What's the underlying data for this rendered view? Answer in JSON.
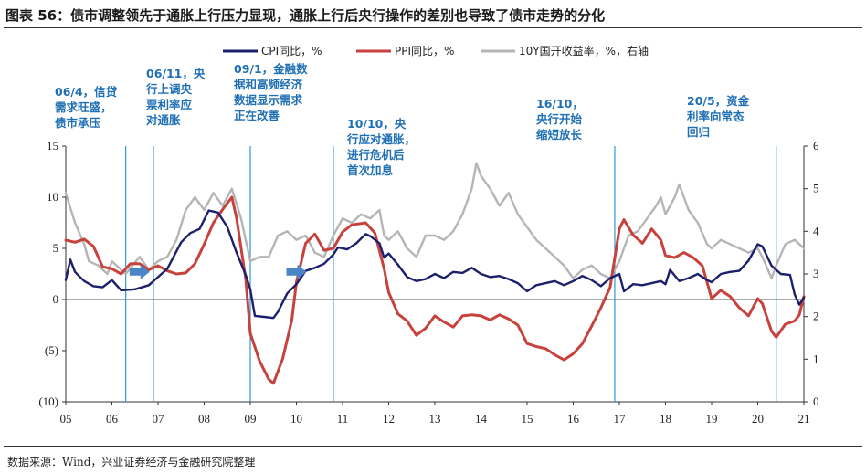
{
  "title": "图表 56：债市调整领先于通胀上行压力显现，通胀上行后央行操作的差别也导致了债市走势的分化",
  "source": "数据来源：Wind，兴业证券经济与金融研究院整理",
  "colors": {
    "cpi": "#1c1f6b",
    "ppi": "#c8423d",
    "yield": "#b5b5b5",
    "event": "#2b9ad6",
    "arrow": "#4a86c5",
    "annotation": "#1f6fb5"
  },
  "chart_data": {
    "type": "line",
    "title": "",
    "xlabel": "",
    "ylabel": "",
    "x_range": [
      2005.0,
      2021.0
    ],
    "xticks": [
      {
        "v": 2005.0,
        "label": "05"
      },
      {
        "v": 2006.0,
        "label": "06"
      },
      {
        "v": 2007.0,
        "label": "07"
      },
      {
        "v": 2008.0,
        "label": "08"
      },
      {
        "v": 2009.0,
        "label": "09"
      },
      {
        "v": 2010.0,
        "label": "10"
      },
      {
        "v": 2011.0,
        "label": "11"
      },
      {
        "v": 2012.0,
        "label": "12"
      },
      {
        "v": 2013.0,
        "label": "13"
      },
      {
        "v": 2014.0,
        "label": "14"
      },
      {
        "v": 2015.0,
        "label": "15"
      },
      {
        "v": 2016.0,
        "label": "16"
      },
      {
        "v": 2017.0,
        "label": "17"
      },
      {
        "v": 2018.0,
        "label": "18"
      },
      {
        "v": 2019.0,
        "label": "19"
      },
      {
        "v": 2020.0,
        "label": "20"
      },
      {
        "v": 2021.0,
        "label": "21"
      }
    ],
    "ylim_left": [
      -10,
      15
    ],
    "yticks_left": [
      {
        "v": 15,
        "label": "15"
      },
      {
        "v": 10,
        "label": "10"
      },
      {
        "v": 5,
        "label": "5"
      },
      {
        "v": 0,
        "label": "0"
      },
      {
        "v": -5,
        "label": "(5)"
      },
      {
        "v": -10,
        "label": "(10)"
      }
    ],
    "ylim_right": [
      0,
      6
    ],
    "yticks_right": [
      {
        "v": 6,
        "label": "6"
      },
      {
        "v": 5,
        "label": "5"
      },
      {
        "v": 4,
        "label": "4"
      },
      {
        "v": 3,
        "label": "3"
      },
      {
        "v": 2,
        "label": "2"
      },
      {
        "v": 1,
        "label": "1"
      },
      {
        "v": 0,
        "label": "0"
      }
    ],
    "series": [
      {
        "name": "CPI同比，%",
        "key": "cpi",
        "axis": "left",
        "points": [
          [
            2005.0,
            1.9
          ],
          [
            2005.1,
            3.9
          ],
          [
            2005.2,
            2.7
          ],
          [
            2005.4,
            1.8
          ],
          [
            2005.6,
            1.3
          ],
          [
            2005.8,
            1.2
          ],
          [
            2006.0,
            1.9
          ],
          [
            2006.2,
            0.9
          ],
          [
            2006.5,
            1.0
          ],
          [
            2006.8,
            1.4
          ],
          [
            2007.0,
            2.2
          ],
          [
            2007.2,
            3.0
          ],
          [
            2007.5,
            5.6
          ],
          [
            2007.7,
            6.5
          ],
          [
            2007.9,
            6.9
          ],
          [
            2008.1,
            8.7
          ],
          [
            2008.3,
            8.5
          ],
          [
            2008.5,
            7.1
          ],
          [
            2008.7,
            4.6
          ],
          [
            2008.9,
            2.4
          ],
          [
            2009.0,
            1.0
          ],
          [
            2009.1,
            -1.6
          ],
          [
            2009.3,
            -1.7
          ],
          [
            2009.5,
            -1.8
          ],
          [
            2009.6,
            -1.2
          ],
          [
            2009.8,
            0.6
          ],
          [
            2010.0,
            1.5
          ],
          [
            2010.2,
            2.8
          ],
          [
            2010.4,
            3.1
          ],
          [
            2010.6,
            3.5
          ],
          [
            2010.8,
            4.4
          ],
          [
            2010.9,
            5.1
          ],
          [
            2011.1,
            4.9
          ],
          [
            2011.3,
            5.5
          ],
          [
            2011.5,
            6.4
          ],
          [
            2011.6,
            6.2
          ],
          [
            2011.8,
            5.5
          ],
          [
            2011.9,
            4.1
          ],
          [
            2012.0,
            4.5
          ],
          [
            2012.2,
            3.4
          ],
          [
            2012.4,
            2.2
          ],
          [
            2012.6,
            1.8
          ],
          [
            2012.8,
            2.0
          ],
          [
            2013.0,
            2.5
          ],
          [
            2013.2,
            2.1
          ],
          [
            2013.4,
            2.7
          ],
          [
            2013.6,
            2.6
          ],
          [
            2013.8,
            3.1
          ],
          [
            2014.0,
            2.5
          ],
          [
            2014.2,
            2.2
          ],
          [
            2014.4,
            2.3
          ],
          [
            2014.6,
            2.0
          ],
          [
            2014.8,
            1.6
          ],
          [
            2015.0,
            0.8
          ],
          [
            2015.2,
            1.4
          ],
          [
            2015.4,
            1.6
          ],
          [
            2015.6,
            1.8
          ],
          [
            2015.8,
            1.4
          ],
          [
            2016.0,
            1.8
          ],
          [
            2016.2,
            2.3
          ],
          [
            2016.4,
            1.9
          ],
          [
            2016.6,
            1.3
          ],
          [
            2016.8,
            2.1
          ],
          [
            2017.0,
            2.5
          ],
          [
            2017.1,
            0.8
          ],
          [
            2017.3,
            1.5
          ],
          [
            2017.5,
            1.4
          ],
          [
            2017.7,
            1.6
          ],
          [
            2017.9,
            1.8
          ],
          [
            2018.0,
            1.5
          ],
          [
            2018.1,
            2.9
          ],
          [
            2018.3,
            1.8
          ],
          [
            2018.5,
            2.1
          ],
          [
            2018.7,
            2.5
          ],
          [
            2018.9,
            1.9
          ],
          [
            2019.0,
            1.7
          ],
          [
            2019.2,
            2.5
          ],
          [
            2019.4,
            2.7
          ],
          [
            2019.6,
            2.8
          ],
          [
            2019.8,
            3.8
          ],
          [
            2020.0,
            5.4
          ],
          [
            2020.1,
            5.2
          ],
          [
            2020.3,
            3.3
          ],
          [
            2020.5,
            2.5
          ],
          [
            2020.7,
            2.4
          ],
          [
            2020.8,
            0.5
          ],
          [
            2020.9,
            -0.5
          ],
          [
            2021.0,
            0.2
          ]
        ]
      },
      {
        "name": "PPI同比，%",
        "key": "ppi",
        "axis": "left",
        "points": [
          [
            2005.0,
            5.8
          ],
          [
            2005.2,
            5.6
          ],
          [
            2005.4,
            5.9
          ],
          [
            2005.6,
            5.2
          ],
          [
            2005.8,
            3.2
          ],
          [
            2006.0,
            3.0
          ],
          [
            2006.2,
            2.5
          ],
          [
            2006.4,
            3.5
          ],
          [
            2006.6,
            3.5
          ],
          [
            2006.8,
            2.9
          ],
          [
            2007.0,
            3.3
          ],
          [
            2007.2,
            2.8
          ],
          [
            2007.4,
            2.5
          ],
          [
            2007.6,
            2.6
          ],
          [
            2007.8,
            3.5
          ],
          [
            2008.0,
            5.4
          ],
          [
            2008.2,
            7.5
          ],
          [
            2008.4,
            8.8
          ],
          [
            2008.6,
            10.0
          ],
          [
            2008.7,
            8.0
          ],
          [
            2008.9,
            2.0
          ],
          [
            2009.0,
            -3.3
          ],
          [
            2009.2,
            -6.0
          ],
          [
            2009.4,
            -7.8
          ],
          [
            2009.5,
            -8.2
          ],
          [
            2009.7,
            -5.8
          ],
          [
            2009.9,
            -2.0
          ],
          [
            2010.0,
            1.7
          ],
          [
            2010.2,
            5.5
          ],
          [
            2010.4,
            6.4
          ],
          [
            2010.6,
            4.8
          ],
          [
            2010.8,
            5.0
          ],
          [
            2011.0,
            6.6
          ],
          [
            2011.2,
            7.3
          ],
          [
            2011.5,
            7.5
          ],
          [
            2011.7,
            6.5
          ],
          [
            2011.9,
            3.0
          ],
          [
            2012.0,
            0.7
          ],
          [
            2012.2,
            -1.4
          ],
          [
            2012.4,
            -2.1
          ],
          [
            2012.6,
            -3.5
          ],
          [
            2012.8,
            -2.8
          ],
          [
            2013.0,
            -1.6
          ],
          [
            2013.2,
            -2.2
          ],
          [
            2013.4,
            -2.7
          ],
          [
            2013.6,
            -1.6
          ],
          [
            2013.8,
            -1.5
          ],
          [
            2014.0,
            -1.6
          ],
          [
            2014.2,
            -2.0
          ],
          [
            2014.4,
            -1.5
          ],
          [
            2014.6,
            -1.9
          ],
          [
            2014.8,
            -2.5
          ],
          [
            2015.0,
            -4.3
          ],
          [
            2015.2,
            -4.6
          ],
          [
            2015.4,
            -4.8
          ],
          [
            2015.6,
            -5.4
          ],
          [
            2015.8,
            -5.9
          ],
          [
            2016.0,
            -5.3
          ],
          [
            2016.2,
            -4.3
          ],
          [
            2016.4,
            -2.6
          ],
          [
            2016.6,
            -0.8
          ],
          [
            2016.8,
            1.2
          ],
          [
            2017.0,
            6.9
          ],
          [
            2017.1,
            7.8
          ],
          [
            2017.3,
            6.3
          ],
          [
            2017.5,
            5.5
          ],
          [
            2017.7,
            6.9
          ],
          [
            2017.9,
            5.8
          ],
          [
            2018.0,
            4.3
          ],
          [
            2018.2,
            4.1
          ],
          [
            2018.4,
            4.6
          ],
          [
            2018.6,
            4.1
          ],
          [
            2018.8,
            3.3
          ],
          [
            2019.0,
            0.1
          ],
          [
            2019.2,
            0.9
          ],
          [
            2019.4,
            0.3
          ],
          [
            2019.6,
            -0.8
          ],
          [
            2019.8,
            -1.6
          ],
          [
            2020.0,
            0.1
          ],
          [
            2020.1,
            -0.4
          ],
          [
            2020.3,
            -3.1
          ],
          [
            2020.4,
            -3.7
          ],
          [
            2020.6,
            -2.4
          ],
          [
            2020.8,
            -2.1
          ],
          [
            2020.9,
            -1.5
          ],
          [
            2021.0,
            0.3
          ]
        ]
      },
      {
        "name": "10Y国开收益率，%，右轴",
        "key": "yield",
        "axis": "right",
        "points": [
          [
            2005.0,
            4.9
          ],
          [
            2005.2,
            4.2
          ],
          [
            2005.4,
            3.7
          ],
          [
            2005.5,
            3.3
          ],
          [
            2005.7,
            3.2
          ],
          [
            2005.9,
            3.0
          ],
          [
            2006.0,
            3.3
          ],
          [
            2006.3,
            3.0
          ],
          [
            2006.6,
            3.4
          ],
          [
            2006.8,
            3.1
          ],
          [
            2007.0,
            3.3
          ],
          [
            2007.2,
            3.4
          ],
          [
            2007.4,
            3.8
          ],
          [
            2007.6,
            4.5
          ],
          [
            2007.8,
            4.8
          ],
          [
            2008.0,
            4.5
          ],
          [
            2008.2,
            4.9
          ],
          [
            2008.4,
            4.6
          ],
          [
            2008.6,
            5.0
          ],
          [
            2008.8,
            4.3
          ],
          [
            2009.0,
            3.3
          ],
          [
            2009.2,
            3.4
          ],
          [
            2009.4,
            3.4
          ],
          [
            2009.6,
            3.9
          ],
          [
            2009.8,
            4.0
          ],
          [
            2010.0,
            3.8
          ],
          [
            2010.2,
            3.9
          ],
          [
            2010.4,
            3.5
          ],
          [
            2010.6,
            3.4
          ],
          [
            2010.8,
            3.9
          ],
          [
            2011.0,
            4.3
          ],
          [
            2011.2,
            4.2
          ],
          [
            2011.4,
            4.4
          ],
          [
            2011.6,
            4.3
          ],
          [
            2011.8,
            4.5
          ],
          [
            2011.9,
            3.9
          ],
          [
            2012.0,
            3.8
          ],
          [
            2012.2,
            4.0
          ],
          [
            2012.4,
            3.6
          ],
          [
            2012.6,
            3.4
          ],
          [
            2012.8,
            3.9
          ],
          [
            2013.0,
            3.9
          ],
          [
            2013.2,
            3.8
          ],
          [
            2013.4,
            4.0
          ],
          [
            2013.6,
            4.4
          ],
          [
            2013.8,
            5.0
          ],
          [
            2013.9,
            5.6
          ],
          [
            2014.0,
            5.3
          ],
          [
            2014.2,
            5.0
          ],
          [
            2014.4,
            4.6
          ],
          [
            2014.6,
            4.9
          ],
          [
            2014.8,
            4.4
          ],
          [
            2015.0,
            4.1
          ],
          [
            2015.2,
            3.8
          ],
          [
            2015.4,
            3.6
          ],
          [
            2015.6,
            3.4
          ],
          [
            2015.8,
            3.2
          ],
          [
            2016.0,
            2.9
          ],
          [
            2016.2,
            3.1
          ],
          [
            2016.4,
            3.2
          ],
          [
            2016.6,
            3.0
          ],
          [
            2016.8,
            2.9
          ],
          [
            2017.0,
            3.3
          ],
          [
            2017.2,
            3.9
          ],
          [
            2017.4,
            4.0
          ],
          [
            2017.6,
            4.3
          ],
          [
            2017.8,
            4.6
          ],
          [
            2017.9,
            4.8
          ],
          [
            2018.0,
            4.4
          ],
          [
            2018.2,
            4.8
          ],
          [
            2018.3,
            5.1
          ],
          [
            2018.5,
            4.5
          ],
          [
            2018.7,
            4.2
          ],
          [
            2018.9,
            3.7
          ],
          [
            2019.0,
            3.6
          ],
          [
            2019.2,
            3.8
          ],
          [
            2019.4,
            3.7
          ],
          [
            2019.6,
            3.6
          ],
          [
            2019.8,
            3.5
          ],
          [
            2020.0,
            3.6
          ],
          [
            2020.1,
            3.4
          ],
          [
            2020.3,
            2.9
          ],
          [
            2020.4,
            3.2
          ],
          [
            2020.6,
            3.7
          ],
          [
            2020.8,
            3.8
          ],
          [
            2020.9,
            3.7
          ],
          [
            2021.0,
            3.6
          ]
        ]
      }
    ],
    "event_lines": [
      2006.3,
      2006.9,
      2009.0,
      2010.8,
      2016.9,
      2020.4
    ],
    "arrows": [
      {
        "x": 2006.6,
        "y": 2.7,
        "dir": "right"
      },
      {
        "x": 2010.0,
        "y": 2.7,
        "dir": "right"
      }
    ],
    "annotations": [
      {
        "lines": [
          "06/4，信贷",
          "需求旺盛，",
          "债市承压"
        ]
      },
      {
        "lines": [
          "06/11，央",
          "行上调央",
          "票利率应",
          "对通胀"
        ]
      },
      {
        "lines": [
          "09/1，金融数",
          "据和高频经济",
          "数据显示需求",
          "正在改善"
        ]
      },
      {
        "lines": [
          "10/10，央",
          "行应对通胀，",
          "进行危机后",
          "首次加息"
        ]
      },
      {
        "lines": [
          "16/10，",
          "央行开始",
          "缩短放长"
        ]
      },
      {
        "lines": [
          "20/5，资金",
          "利率向常态",
          "回归"
        ]
      }
    ],
    "legend_position": "top"
  }
}
